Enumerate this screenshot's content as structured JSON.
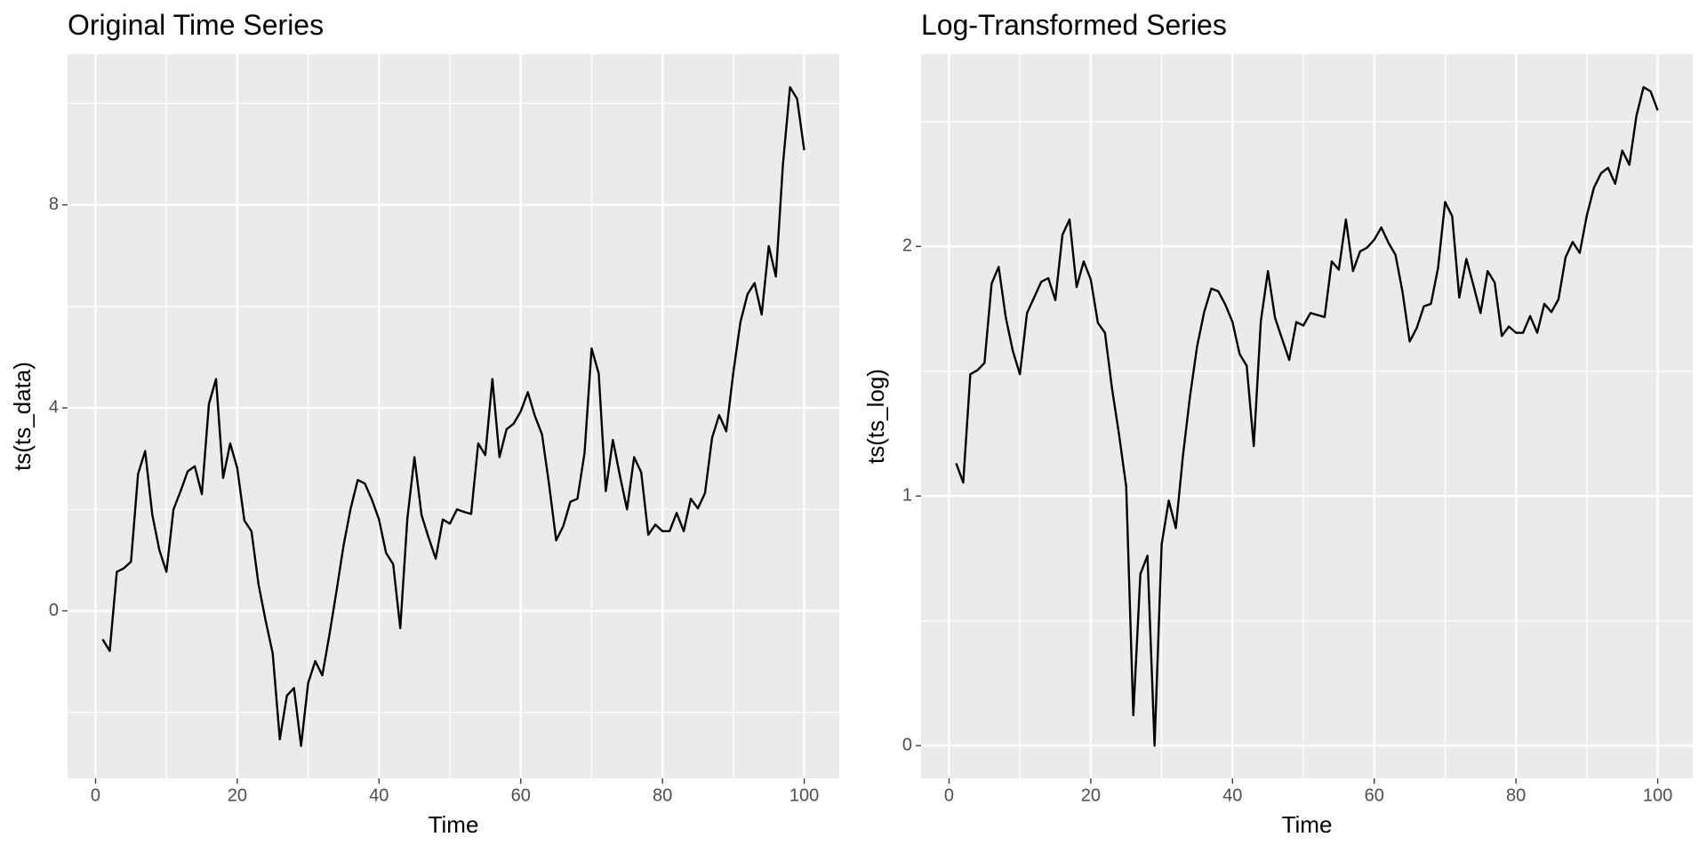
{
  "chart_data": [
    {
      "type": "line",
      "title": "Original Time Series",
      "x_label": "Time",
      "y_label": "ts(ts_data)",
      "grid": true,
      "xlim": [
        -3.95,
        104.95
      ],
      "ylim": [
        -3.3,
        10.97
      ],
      "xticks": [
        0,
        20,
        40,
        60,
        80,
        100
      ],
      "yticks": [
        0,
        4,
        8
      ],
      "minor_xticks": [
        10,
        30,
        50,
        70,
        90
      ],
      "minor_yticks": [
        -2,
        2,
        6,
        10
      ],
      "x": [
        1,
        2,
        3,
        4,
        5,
        6,
        7,
        8,
        9,
        10,
        11,
        12,
        13,
        14,
        15,
        16,
        17,
        18,
        19,
        20,
        21,
        22,
        23,
        24,
        25,
        26,
        27,
        28,
        29,
        30,
        31,
        32,
        33,
        34,
        35,
        36,
        37,
        38,
        39,
        40,
        41,
        42,
        43,
        44,
        45,
        46,
        47,
        48,
        49,
        50,
        51,
        52,
        53,
        54,
        55,
        56,
        57,
        58,
        59,
        60,
        61,
        62,
        63,
        64,
        65,
        66,
        67,
        68,
        69,
        70,
        71,
        72,
        73,
        74,
        75,
        76,
        77,
        78,
        79,
        80,
        81,
        82,
        83,
        84,
        85,
        86,
        87,
        88,
        89,
        90,
        91,
        92,
        93,
        94,
        95,
        96,
        97,
        98,
        99,
        100
      ],
      "series": [
        {
          "color": "#000000",
          "values": [
            -0.56,
            -0.79,
            0.77,
            0.84,
            0.97,
            2.7,
            3.15,
            1.9,
            1.2,
            0.77,
            2.0,
            2.36,
            2.75,
            2.85,
            2.3,
            4.08,
            4.57,
            2.62,
            3.3,
            2.81,
            1.78,
            1.57,
            0.52,
            -0.19,
            -0.84,
            -2.53,
            -1.67,
            -1.52,
            -2.66,
            -1.42,
            -0.99,
            -1.27,
            -0.47,
            0.39,
            1.29,
            2.02,
            2.58,
            2.51,
            2.19,
            1.8,
            1.14,
            0.92,
            -0.34,
            1.82,
            3.03,
            1.89,
            1.44,
            1.03,
            1.8,
            1.72,
            2.0,
            1.95,
            1.91,
            3.3,
            3.07,
            4.57,
            3.03,
            3.58,
            3.69,
            3.93,
            4.31,
            3.84,
            3.48,
            2.49,
            1.39,
            1.67,
            2.15,
            2.21,
            3.11,
            5.17,
            4.68,
            2.36,
            3.37,
            2.66,
            2.0,
            3.03,
            2.73,
            1.5,
            1.7,
            1.57,
            1.57,
            1.93,
            1.57,
            2.21,
            2.02,
            2.32,
            3.41,
            3.86,
            3.54,
            4.7,
            5.69,
            6.24,
            6.46,
            5.84,
            7.19,
            6.59,
            8.8,
            10.32,
            10.09,
            9.08
          ]
        }
      ]
    },
    {
      "type": "line",
      "title": "Log-Transformed Series",
      "x_label": "Time",
      "y_label": "ts(ts_log)",
      "grid": true,
      "xlim": [
        -3.95,
        104.95
      ],
      "ylim": [
        -0.131,
        2.77
      ],
      "xticks": [
        0,
        20,
        40,
        60,
        80,
        100
      ],
      "yticks": [
        0,
        1,
        2
      ],
      "minor_xticks": [
        10,
        30,
        50,
        70,
        90
      ],
      "minor_yticks": [
        0.5,
        1.5,
        2.5
      ],
      "x": [
        1,
        2,
        3,
        4,
        5,
        6,
        7,
        8,
        9,
        10,
        11,
        12,
        13,
        14,
        15,
        16,
        17,
        18,
        19,
        20,
        21,
        22,
        23,
        24,
        25,
        26,
        27,
        28,
        29,
        30,
        31,
        32,
        33,
        34,
        35,
        36,
        37,
        38,
        39,
        40,
        41,
        42,
        43,
        44,
        45,
        46,
        47,
        48,
        49,
        50,
        51,
        52,
        53,
        54,
        55,
        56,
        57,
        58,
        59,
        60,
        61,
        62,
        63,
        64,
        65,
        66,
        67,
        68,
        69,
        70,
        71,
        72,
        73,
        74,
        75,
        76,
        77,
        78,
        79,
        80,
        81,
        82,
        83,
        84,
        85,
        86,
        87,
        88,
        89,
        90,
        91,
        92,
        93,
        94,
        95,
        96,
        97,
        98,
        99,
        100
      ],
      "series": [
        {
          "color": "#000000",
          "values": [
            1.131,
            1.054,
            1.488,
            1.504,
            1.533,
            1.85,
            1.918,
            1.716,
            1.581,
            1.488,
            1.733,
            1.795,
            1.858,
            1.873,
            1.785,
            2.046,
            2.108,
            1.837,
            1.94,
            1.867,
            1.694,
            1.654,
            1.43,
            1.244,
            1.037,
            0.122,
            0.688,
            0.761,
            0,
            0.806,
            0.982,
            0.871,
            1.16,
            1.399,
            1.599,
            1.737,
            1.831,
            1.82,
            1.766,
            1.697,
            1.569,
            1.522,
            1.2,
            1.701,
            1.901,
            1.714,
            1.629,
            1.545,
            1.697,
            1.683,
            1.733,
            1.725,
            1.717,
            1.94,
            1.907,
            2.108,
            1.901,
            1.98,
            1.995,
            2.027,
            2.076,
            2.015,
            1.966,
            1.816,
            1.619,
            1.673,
            1.76,
            1.77,
            1.913,
            2.178,
            2.121,
            1.795,
            1.95,
            1.844,
            1.733,
            1.901,
            1.855,
            1.641,
            1.679,
            1.654,
            1.654,
            1.721,
            1.654,
            1.77,
            1.737,
            1.788,
            1.956,
            2.018,
            1.974,
            2.124,
            2.235,
            2.293,
            2.315,
            2.251,
            2.384,
            2.327,
            2.523,
            2.638,
            2.621,
            2.545
          ]
        }
      ]
    }
  ]
}
